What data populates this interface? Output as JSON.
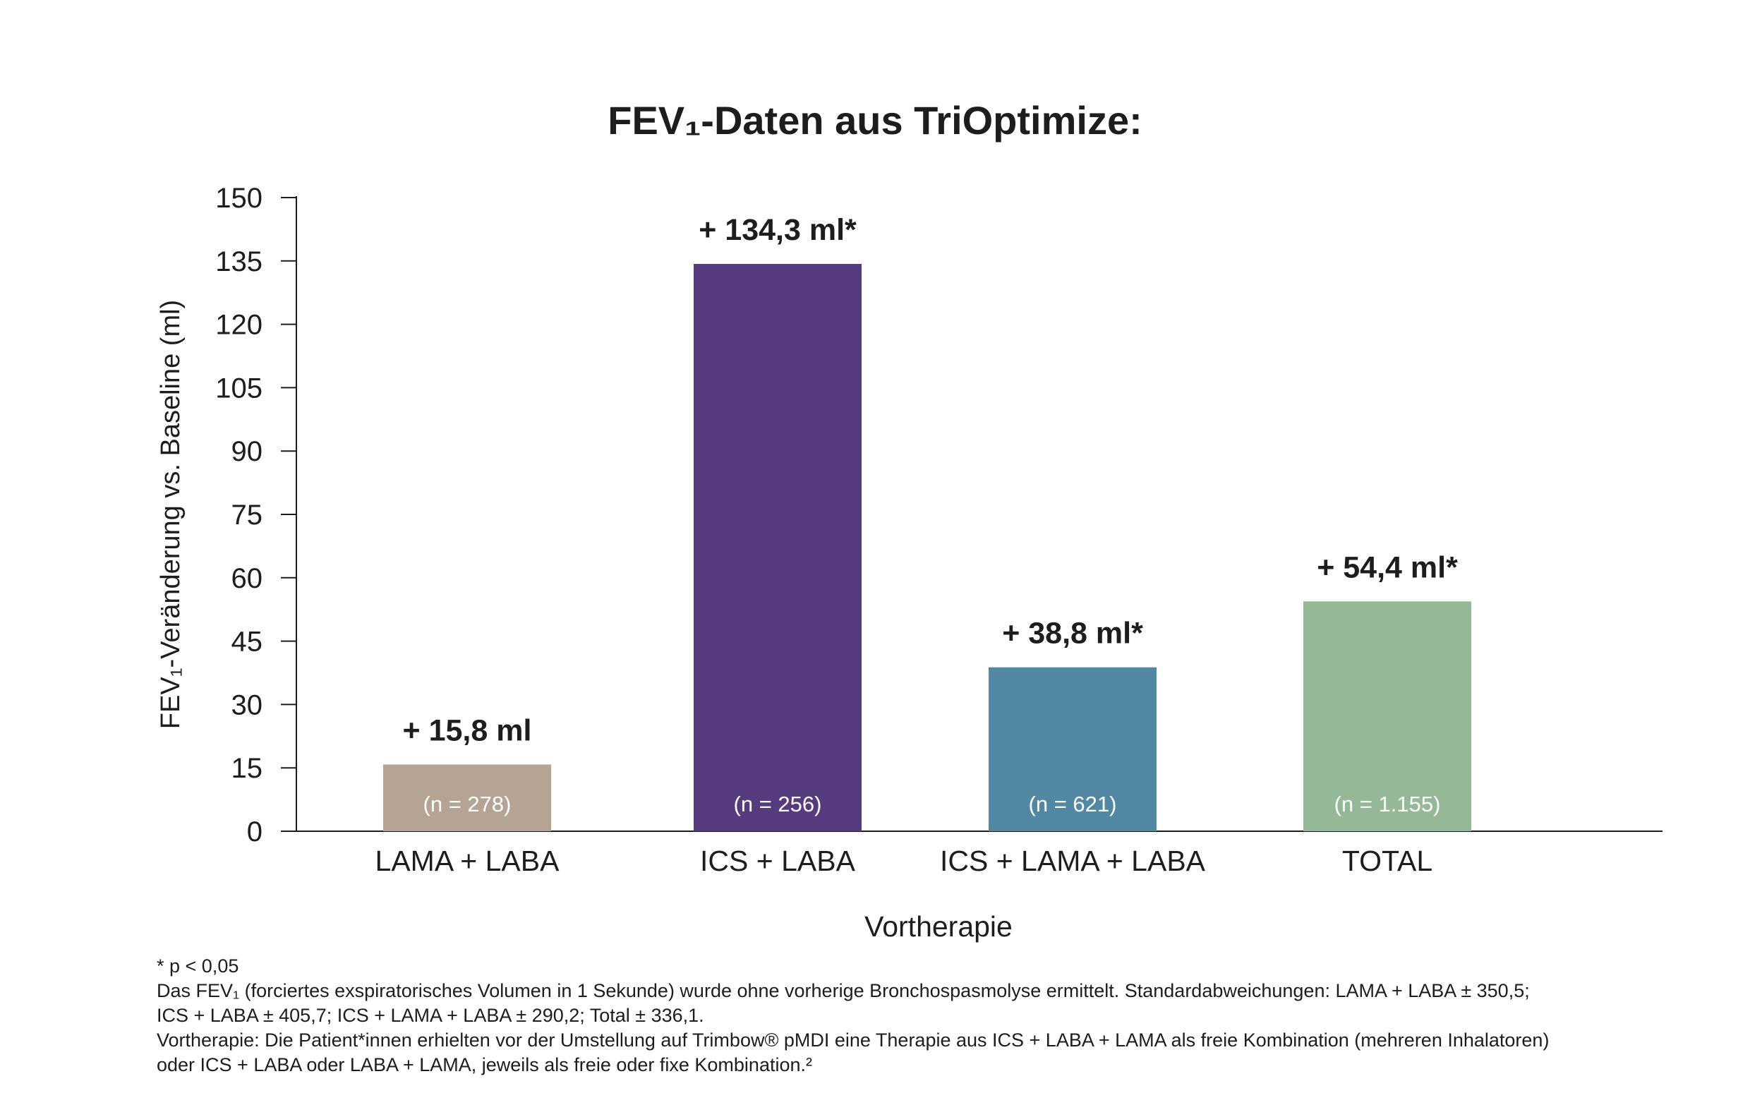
{
  "chart_data": {
    "type": "bar",
    "title": "FEV₁-Daten aus TriOptimize:",
    "xlabel": "Vortherapie",
    "ylabel": "FEV₁-Veränderung vs. Baseline (ml)",
    "ylim": [
      0,
      150
    ],
    "yticks": [
      0,
      15,
      30,
      45,
      60,
      75,
      90,
      105,
      120,
      135,
      150
    ],
    "grid": false,
    "categories": [
      "LAMA + LABA",
      "ICS + LABA",
      "ICS + LAMA + LABA",
      "TOTAL"
    ],
    "values": [
      15.8,
      134.3,
      38.8,
      54.4
    ],
    "value_labels": [
      "+ 15,8 ml",
      "+ 134,3 ml*",
      "+ 38,8 ml*",
      "+ 54,4 ml*"
    ],
    "n_labels": [
      "(n = 278)",
      "(n = 256)",
      "(n = 621)",
      "(n = 1.155)"
    ],
    "colors": [
      "#b5a393",
      "#563c7e",
      "#5288a4",
      "#95b896"
    ]
  },
  "footnotes": {
    "line1": "* p < 0,05",
    "line2": "Das FEV₁ (forciertes exspiratorisches Volumen in 1 Sekunde) wurde ohne vorherige Bronchospasmolyse ermittelt. Standardabweichungen: LAMA + LABA ± 350,5;",
    "line3": "ICS + LABA ± 405,7; ICS + LAMA + LABA ± 290,2; Total ± 336,1.",
    "line4": "Vortherapie: Die Patient*innen erhielten vor der Umstellung auf Trimbow® pMDI eine Therapie aus ICS + LABA + LAMA als freie Kombination (mehreren Inhalatoren)",
    "line5": "oder ICS + LABA oder LABA + LAMA, jeweils als freie oder fixe Kombination.²"
  }
}
